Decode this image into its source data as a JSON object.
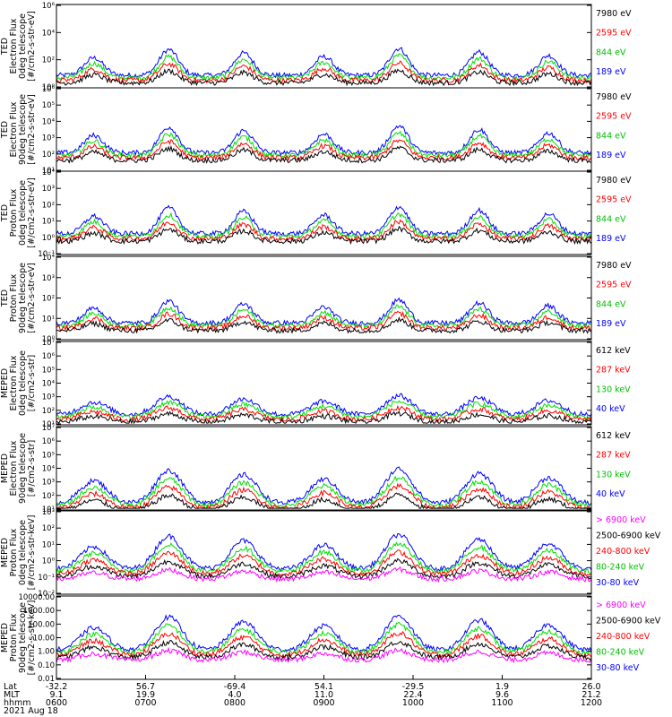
{
  "colors": {
    "blue": "#0000ff",
    "red": "#ff0000",
    "green": "#00e000",
    "black": "#000000",
    "magenta": "#ff00ff"
  },
  "chart_data": {
    "type": "line",
    "x_labels": {
      "row_labels": [
        "Lat",
        "MLT",
        "hhmm"
      ],
      "lat": [
        "-32.2",
        "56.7",
        "-69.4",
        "54.1",
        "-29.5",
        "1.9",
        "26.0"
      ],
      "mlt": [
        "9.1",
        "19.9",
        "4.0",
        "11.0",
        "22.4",
        "9.6",
        "21.2"
      ],
      "hhmm": [
        "0600",
        "0700",
        "0800",
        "0900",
        "1000",
        "1100",
        "1200"
      ],
      "date": "2021 Aug 18"
    },
    "panels": [
      {
        "id": "ted-e-0",
        "ylabel_lines": [
          "TED",
          "Electron Flux",
          "0deg telescope",
          "[#/cm2-s-str-eV]"
        ],
        "yticks": [
          "10⁰",
          "10²",
          "10⁴",
          "10⁶"
        ],
        "ylog": [
          0,
          6
        ],
        "legend": [
          {
            "label": "7980 eV",
            "color": "black"
          },
          {
            "label": "2595 eV",
            "color": "red"
          },
          {
            "label": "844 eV",
            "color": "green"
          },
          {
            "label": "189 eV",
            "color": "blue"
          }
        ]
      },
      {
        "id": "ted-e-90",
        "ylabel_lines": [
          "TED",
          "Electron Flux",
          "90deg telescope",
          "[#/cm2-s-str-eV]"
        ],
        "yticks": [
          "10¹",
          "10²",
          "10³",
          "10⁴",
          "10⁵",
          "10⁶"
        ],
        "ylog": [
          0,
          6
        ],
        "legend": [
          {
            "label": "7980 eV",
            "color": "black"
          },
          {
            "label": "2595 eV",
            "color": "red"
          },
          {
            "label": "844 eV",
            "color": "green"
          },
          {
            "label": "189 eV",
            "color": "blue"
          }
        ]
      },
      {
        "id": "ted-p-0",
        "ylabel_lines": [
          "TED",
          "Proton Flux",
          "0deg telescope",
          "[#/cm2-s-str-eV]"
        ],
        "yticks": [
          "10⁻¹",
          "10⁰",
          "10¹",
          "10²",
          "10³",
          "10⁴"
        ],
        "ylog": [
          -1,
          5
        ],
        "legend": [
          {
            "label": "7980 eV",
            "color": "black"
          },
          {
            "label": "2595 eV",
            "color": "red"
          },
          {
            "label": "844 eV",
            "color": "green"
          },
          {
            "label": "189 eV",
            "color": "blue"
          }
        ]
      },
      {
        "id": "ted-p-90",
        "ylabel_lines": [
          "TED",
          "Proton Flux",
          "90deg telescope",
          "[#/cm2-s-str-eV]"
        ],
        "yticks": [
          "10⁰",
          "10¹",
          "10²",
          "10³",
          "10⁴"
        ],
        "ylog": [
          0,
          5
        ],
        "legend": [
          {
            "label": "7980 eV",
            "color": "black"
          },
          {
            "label": "2595 eV",
            "color": "red"
          },
          {
            "label": "844 eV",
            "color": "green"
          },
          {
            "label": "189 eV",
            "color": "blue"
          }
        ]
      },
      {
        "id": "meped-e-0",
        "ylabel_lines": [
          "MEPED",
          "Electron Flux",
          "0deg telescope",
          "[#/cm2-s-str]"
        ],
        "yticks": [
          "10¹",
          "10²",
          "10³",
          "10⁴",
          "10⁵",
          "10⁶",
          "10⁷"
        ],
        "ylog": [
          1,
          7
        ],
        "legend": [
          {
            "label": "612 keV",
            "color": "black"
          },
          {
            "label": "287 keV",
            "color": "red"
          },
          {
            "label": "130 keV",
            "color": "green"
          },
          {
            "label": "40 keV",
            "color": "blue"
          }
        ]
      },
      {
        "id": "meped-e-90",
        "ylabel_lines": [
          "MEPED",
          "Electron Flux",
          "90deg telescope",
          "[#/cm2-s-str]"
        ],
        "yticks": [
          "10¹",
          "10²",
          "10³",
          "10⁴",
          "10⁵",
          "10⁶",
          "10⁷"
        ],
        "ylog": [
          1,
          7
        ],
        "legend": [
          {
            "label": "612 keV",
            "color": "black"
          },
          {
            "label": "287 keV",
            "color": "red"
          },
          {
            "label": "130 keV",
            "color": "green"
          },
          {
            "label": "40 keV",
            "color": "blue"
          }
        ]
      },
      {
        "id": "meped-p-0",
        "ylabel_lines": [
          "MEPED",
          "Proton Flux",
          "0deg telescope",
          "[#/cm2-s-str-keV]"
        ],
        "yticks": [
          "10⁻²",
          "10⁻¹",
          "10⁰",
          "10¹",
          "10²",
          "10³"
        ],
        "ylog": [
          -2,
          4
        ],
        "legend": [
          {
            "label": "> 6900 keV",
            "color": "magenta"
          },
          {
            "label": "2500-6900 keV",
            "color": "black"
          },
          {
            "label": "240-800 keV",
            "color": "red"
          },
          {
            "label": "80-240 keV",
            "color": "green"
          },
          {
            "label": "30-80 keV",
            "color": "blue"
          }
        ]
      },
      {
        "id": "meped-p-90",
        "ylabel_lines": [
          "MEPED",
          "Proton Flux",
          "90deg telescope",
          "[#/cm2-s-str-keV]"
        ],
        "yticks": [
          "0.01",
          "0.10",
          "1.00",
          "10.00",
          "100.00",
          "1000.00",
          "10000.00"
        ],
        "ylog": [
          -2,
          4
        ],
        "legend": [
          {
            "label": "> 6900 keV",
            "color": "magenta"
          },
          {
            "label": "2500-6900 keV",
            "color": "black"
          },
          {
            "label": "240-800 keV",
            "color": "red"
          },
          {
            "label": "80-240 keV",
            "color": "green"
          },
          {
            "label": "30-80 keV",
            "color": "blue"
          }
        ]
      }
    ]
  }
}
